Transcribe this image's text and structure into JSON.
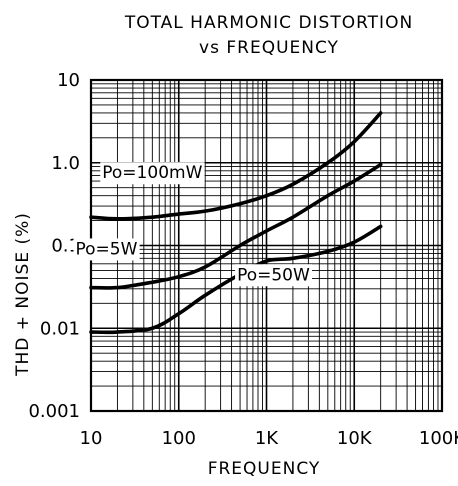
{
  "chart_data": {
    "type": "line",
    "title": "TOTAL HARMONIC DISTORTION",
    "subtitle": "vs FREQUENCY",
    "xlabel": "FREQUENCY",
    "ylabel": "THD + NOISE (%)",
    "x_scale": "log",
    "y_scale": "log",
    "xlim": [
      10,
      100000
    ],
    "ylim": [
      0.001,
      10
    ],
    "grid": true,
    "x_ticks": [
      "10",
      "100",
      "1K",
      "10K",
      "100K"
    ],
    "y_ticks": [
      "10",
      "1.0",
      "0.1",
      "0.01",
      "0.001"
    ],
    "series": [
      {
        "name": "Po=100mW",
        "points": [
          [
            10,
            0.22
          ],
          [
            20,
            0.21
          ],
          [
            50,
            0.22
          ],
          [
            100,
            0.24
          ],
          [
            200,
            0.26
          ],
          [
            500,
            0.32
          ],
          [
            1000,
            0.4
          ],
          [
            2000,
            0.55
          ],
          [
            5000,
            1.0
          ],
          [
            10000,
            1.8
          ],
          [
            20000,
            4.0
          ]
        ]
      },
      {
        "name": "Po=5W",
        "points": [
          [
            10,
            0.031
          ],
          [
            20,
            0.031
          ],
          [
            50,
            0.036
          ],
          [
            100,
            0.042
          ],
          [
            200,
            0.055
          ],
          [
            500,
            0.1
          ],
          [
            1000,
            0.15
          ],
          [
            2000,
            0.22
          ],
          [
            5000,
            0.4
          ],
          [
            10000,
            0.6
          ],
          [
            20000,
            0.95
          ]
        ]
      },
      {
        "name": "Po=50W",
        "points": [
          [
            10,
            0.009
          ],
          [
            20,
            0.009
          ],
          [
            50,
            0.01
          ],
          [
            100,
            0.015
          ],
          [
            200,
            0.025
          ],
          [
            500,
            0.045
          ],
          [
            1000,
            0.065
          ],
          [
            2000,
            0.07
          ],
          [
            5000,
            0.085
          ],
          [
            10000,
            0.11
          ],
          [
            20000,
            0.17
          ]
        ]
      }
    ]
  }
}
